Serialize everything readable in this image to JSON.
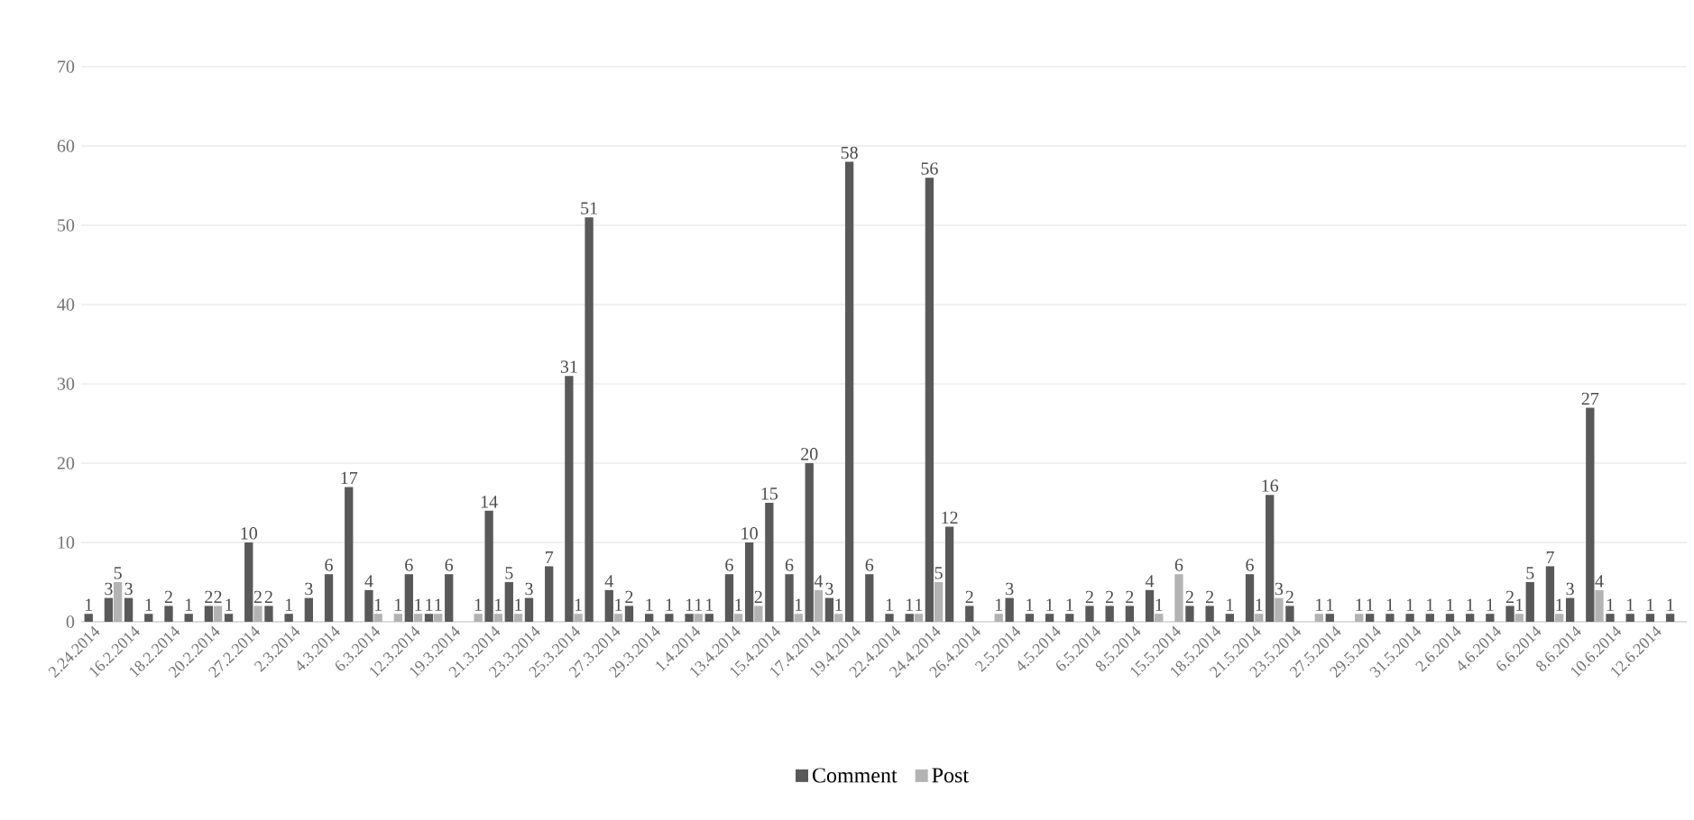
{
  "chart_data": {
    "type": "bar",
    "categories": [
      "2.24.2014",
      null,
      "16.2.2014",
      null,
      "18.2.2014",
      null,
      "20.2.2014",
      null,
      "27.2.2014",
      null,
      "2.3.2014",
      null,
      "4.3.2014",
      null,
      "6.3.2014",
      null,
      "12.3.2014",
      null,
      "19.3.2014",
      null,
      "21.3.2014",
      null,
      "23.3.2014",
      null,
      "25.3.2014",
      null,
      "27.3.2014",
      null,
      "29.3.2014",
      null,
      "1.4.2014",
      null,
      "13.4.2014",
      null,
      "15.4.2014",
      null,
      "17.4.2014",
      null,
      "19.4.2014",
      null,
      "22.4.2014",
      null,
      "24.4.2014",
      null,
      "26.4.2014",
      null,
      "2.5.2014",
      null,
      "4.5.2014",
      null,
      "6.5.2014",
      null,
      "8.5.2014",
      null,
      "15.5.2014",
      null,
      "18.5.2014",
      null,
      "21.5.2014",
      null,
      "23.5.2014",
      null,
      "27.5.2014",
      null,
      "29.5.2014",
      null,
      "31.5.2014",
      null,
      "2.6.2014",
      null,
      "4.6.2014",
      null,
      "6.6.2014",
      null,
      "8.6.2014",
      null,
      "10.6.2014",
      null,
      "12.6.2014",
      null
    ],
    "series": [
      {
        "name": "Comment",
        "color": "#595959",
        "values": [
          1,
          3,
          3,
          1,
          2,
          1,
          2,
          1,
          10,
          2,
          1,
          3,
          6,
          17,
          4,
          null,
          6,
          1,
          6,
          null,
          14,
          5,
          3,
          7,
          31,
          51,
          4,
          2,
          1,
          1,
          1,
          1,
          6,
          10,
          15,
          6,
          20,
          3,
          58,
          6,
          1,
          1,
          56,
          12,
          2,
          null,
          3,
          1,
          1,
          1,
          2,
          2,
          2,
          4,
          null,
          2,
          2,
          1,
          6,
          16,
          2,
          null,
          1,
          null,
          1,
          1,
          1,
          1,
          1,
          1,
          1,
          2,
          5,
          7,
          3,
          27,
          1,
          1,
          1,
          1
        ]
      },
      {
        "name": "Post",
        "color": "#b3b3b3",
        "values": [
          null,
          5,
          null,
          null,
          null,
          null,
          2,
          null,
          2,
          null,
          null,
          null,
          null,
          null,
          1,
          1,
          1,
          1,
          null,
          1,
          1,
          1,
          null,
          null,
          1,
          null,
          1,
          null,
          null,
          null,
          1,
          null,
          1,
          2,
          null,
          1,
          4,
          1,
          null,
          null,
          null,
          1,
          5,
          null,
          null,
          1,
          null,
          null,
          null,
          null,
          null,
          null,
          null,
          1,
          6,
          null,
          null,
          null,
          1,
          3,
          null,
          1,
          null,
          1,
          null,
          null,
          null,
          null,
          null,
          null,
          null,
          1,
          null,
          1,
          null,
          4,
          null,
          null,
          null,
          null
        ]
      }
    ],
    "ylim": [
      0,
      70
    ],
    "yticks": [
      0,
      10,
      20,
      30,
      40,
      50,
      60,
      70
    ],
    "grid": "y",
    "legend": "bottom",
    "data_labels": true
  }
}
